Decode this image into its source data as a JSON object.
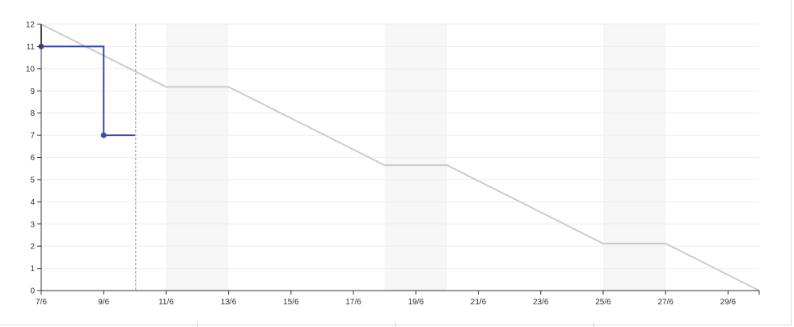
{
  "chart_data": {
    "type": "line",
    "title": "",
    "xlabel": "",
    "ylabel": "",
    "x_tick_labels": [
      "7/6",
      "9/6",
      "11/6",
      "13/6",
      "15/6",
      "17/6",
      "19/6",
      "21/6",
      "23/6",
      "25/6",
      "27/6",
      "29/6"
    ],
    "x_range_days": [
      "7/6",
      "30/6"
    ],
    "ylim": [
      0,
      12
    ],
    "y_ticks": [
      "0",
      "1",
      "2",
      "3",
      "4",
      "5",
      "6",
      "7",
      "8",
      "9",
      "10",
      "11",
      "12"
    ],
    "grid": true,
    "today": "10/6",
    "weekend_bands": [
      [
        "11/6",
        "13/6"
      ],
      [
        "18/6",
        "20/6"
      ],
      [
        "25/6",
        "27/6"
      ]
    ],
    "series": [
      {
        "style": "ideal",
        "color": "#cccccc",
        "points": [
          {
            "x": "7/6",
            "y": 12
          },
          {
            "x": "11/6",
            "y": 9.18
          },
          {
            "x": "13/6",
            "y": 9.18
          },
          {
            "x": "18/6",
            "y": 5.65
          },
          {
            "x": "20/6",
            "y": 5.65
          },
          {
            "x": "25/6",
            "y": 2.12
          },
          {
            "x": "27/6",
            "y": 2.12
          },
          {
            "x": "30/6",
            "y": 0
          }
        ]
      },
      {
        "style": "actual",
        "color": "#3b4ba6",
        "step": true,
        "points": [
          {
            "x": "7/6",
            "y": 12,
            "marker": false
          },
          {
            "x": "7/6",
            "y": 11,
            "marker": true
          },
          {
            "x": "9/6",
            "y": 7,
            "marker": true
          },
          {
            "x": "10/6",
            "y": 7,
            "marker": false
          }
        ]
      }
    ]
  }
}
